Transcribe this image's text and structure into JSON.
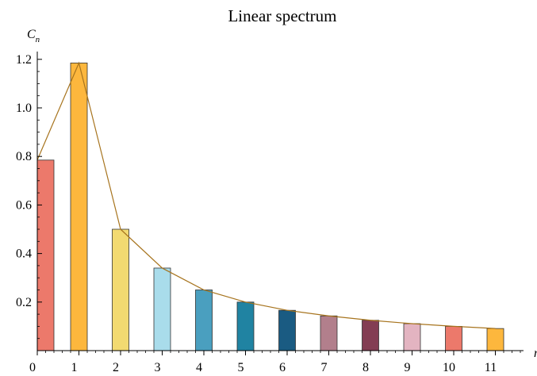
{
  "chart_data": {
    "type": "bar",
    "title": "Linear spectrum",
    "ylabel": "C",
    "ylabel_sub": "n",
    "xlabel": "n",
    "categories": [
      "0",
      "1",
      "2",
      "3",
      "4",
      "5",
      "6",
      "7",
      "8",
      "9",
      "10",
      "11"
    ],
    "values": [
      0.785,
      1.185,
      0.5,
      0.34,
      0.25,
      0.2,
      0.166,
      0.143,
      0.125,
      0.111,
      0.1,
      0.091
    ],
    "bar_colors": [
      "#EC796B",
      "#FDB73D",
      "#F2DA71",
      "#A9DCEB",
      "#4A9FBF",
      "#2083A2",
      "#1A5B82",
      "#B27F8C",
      "#833D53",
      "#E3B4C1",
      "#EC796B",
      "#FDB73D"
    ],
    "connecting_line": true,
    "line_color": "#A7741E",
    "y_ticks": [
      0.2,
      0.4,
      0.6,
      0.8,
      1.0,
      1.2
    ],
    "y_tick_labels": [
      "0.2",
      "0.4",
      "0.6",
      "0.8",
      "1.0",
      "1.2"
    ],
    "ylim": [
      0,
      1.25
    ],
    "grid": false,
    "legend": "none"
  }
}
